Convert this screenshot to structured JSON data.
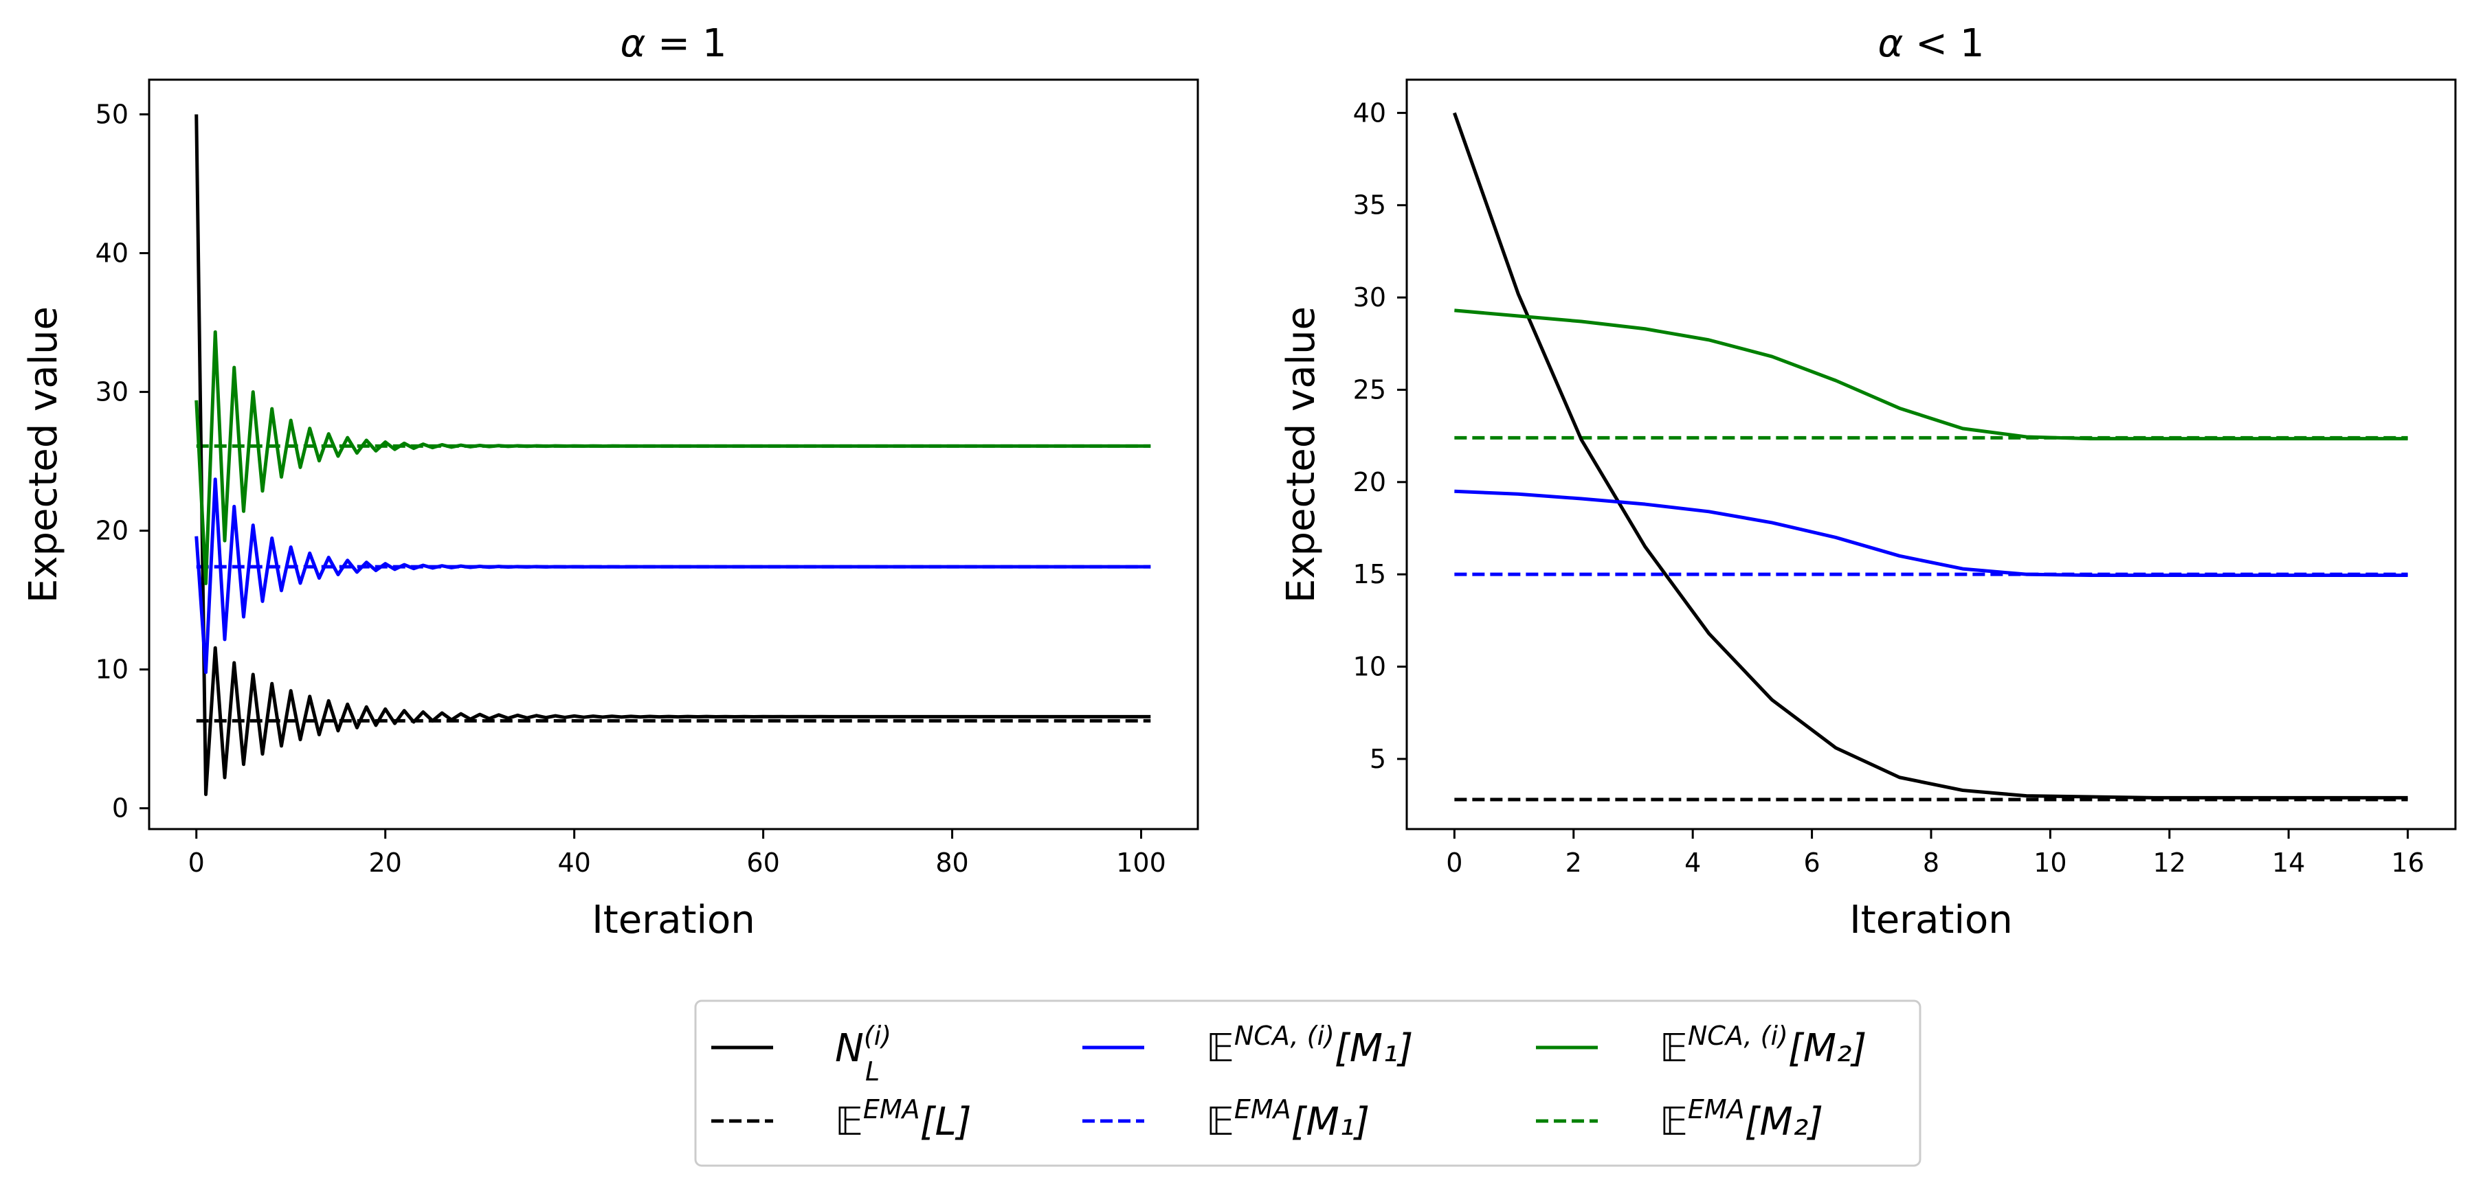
{
  "figure": {
    "panel_left_title_prefix": "α",
    "panel_left_title_relation": " = 1",
    "panel_right_title_prefix": "α",
    "panel_right_title_relation": " < 1"
  },
  "chart_data": [
    {
      "type": "line",
      "title": "α = 1",
      "xlabel": "Iteration",
      "ylabel": "Expected value",
      "xlim": [
        -5,
        106
      ],
      "ylim": [
        -1.5,
        52.5
      ],
      "xticks": [
        0,
        20,
        40,
        60,
        80,
        100
      ],
      "yticks": [
        0,
        10,
        20,
        30,
        40,
        50
      ],
      "grid": false,
      "series": [
        {
          "name": "N_L^(i)",
          "style": "solid",
          "color": "#000000",
          "generator": {
            "start": 50.0,
            "target": 6.6,
            "first_dip": 1.0,
            "decay": 0.885,
            "n": 102
          }
        },
        {
          "name": "E^EMA[L]",
          "style": "dashed",
          "color": "#000000",
          "x": [
            0,
            101
          ],
          "y": [
            6.3,
            6.3
          ]
        },
        {
          "name": "E^NCA,(i)[M1]",
          "style": "solid",
          "color": "#0000ff",
          "generator": {
            "start": 19.6,
            "target": 17.4,
            "first_dip": 9.8,
            "decay": 0.83,
            "n": 102
          }
        },
        {
          "name": "E^EMA[M1]",
          "style": "dashed",
          "color": "#0000ff",
          "x": [
            0,
            101
          ],
          "y": [
            17.4,
            17.4
          ]
        },
        {
          "name": "E^NCA,(i)[M2]",
          "style": "solid",
          "color": "#008000",
          "generator": {
            "start": 29.4,
            "target": 26.1,
            "first_dip": 16.2,
            "decay": 0.83,
            "n": 102
          }
        },
        {
          "name": "E^EMA[M2]",
          "style": "dashed",
          "color": "#008000",
          "x": [
            0,
            101
          ],
          "y": [
            26.1,
            26.1
          ]
        }
      ]
    },
    {
      "type": "line",
      "title": "α < 1",
      "xlabel": "Iteration",
      "ylabel": "Expected value",
      "xlim": [
        -0.8,
        16.8
      ],
      "ylim": [
        1.2,
        41.8
      ],
      "xticks": [
        0,
        2,
        4,
        6,
        8,
        10,
        12,
        14,
        16
      ],
      "yticks": [
        5,
        10,
        15,
        20,
        25,
        30,
        35,
        40
      ],
      "grid": false,
      "series": [
        {
          "name": "N_L^(i)",
          "style": "solid",
          "color": "#000000",
          "x": [
            0,
            1.07,
            2.13,
            3.2,
            4.27,
            5.33,
            6.4,
            7.47,
            8.53,
            9.6,
            10.67,
            11.73,
            12.8,
            13.87,
            14.93,
            16
          ],
          "y": [
            40,
            30.2,
            22.3,
            16.5,
            11.8,
            8.2,
            5.6,
            4.0,
            3.3,
            3.0,
            2.95,
            2.9,
            2.9,
            2.9,
            2.9,
            2.9
          ]
        },
        {
          "name": "E^EMA[L]",
          "style": "dashed",
          "color": "#000000",
          "x": [
            0,
            16
          ],
          "y": [
            2.8,
            2.8
          ]
        },
        {
          "name": "E^NCA,(i)[M1]",
          "style": "solid",
          "color": "#0000ff",
          "x": [
            0,
            1.07,
            2.13,
            3.2,
            4.27,
            5.33,
            6.4,
            7.47,
            8.53,
            9.6,
            10.67,
            11.73,
            12.8,
            13.87,
            14.93,
            16
          ],
          "y": [
            19.5,
            19.35,
            19.1,
            18.8,
            18.4,
            17.8,
            17.0,
            16.0,
            15.3,
            15.0,
            14.95,
            14.95,
            14.95,
            14.95,
            14.95,
            14.95
          ]
        },
        {
          "name": "E^EMA[M1]",
          "style": "dashed",
          "color": "#0000ff",
          "x": [
            0,
            16
          ],
          "y": [
            15.0,
            15.0
          ]
        },
        {
          "name": "E^NCA,(i)[M2]",
          "style": "solid",
          "color": "#008000",
          "x": [
            0,
            1.07,
            2.13,
            3.2,
            4.27,
            5.33,
            6.4,
            7.47,
            8.53,
            9.6,
            10.67,
            11.73,
            12.8,
            13.87,
            14.93,
            16
          ],
          "y": [
            29.3,
            29.0,
            28.7,
            28.3,
            27.7,
            26.8,
            25.5,
            24.0,
            22.9,
            22.45,
            22.35,
            22.35,
            22.35,
            22.35,
            22.35,
            22.35
          ]
        },
        {
          "name": "E^EMA[M2]",
          "style": "dashed",
          "color": "#008000",
          "x": [
            0,
            16
          ],
          "y": [
            22.4,
            22.4
          ]
        }
      ]
    }
  ],
  "legend": {
    "placement": "bottom-center",
    "entries": [
      {
        "name": "N_L^(i)",
        "text": "N",
        "sub": "L",
        "sup": "(i)",
        "tail": "",
        "style": "solid",
        "color": "#000000"
      },
      {
        "name": "E^EMA[L]",
        "text": "𝔼",
        "sub": "",
        "sup": "EMA",
        "tail": "[L]",
        "style": "dashed",
        "color": "#000000"
      },
      {
        "name": "E^NCA,(i)[M1]",
        "text": "𝔼",
        "sub": "",
        "sup": "NCA, (i)",
        "tail": "[M₁]",
        "style": "solid",
        "color": "#0000ff"
      },
      {
        "name": "E^EMA[M1]",
        "text": "𝔼",
        "sub": "",
        "sup": "EMA",
        "tail": "[M₁]",
        "style": "dashed",
        "color": "#0000ff"
      },
      {
        "name": "E^NCA,(i)[M2]",
        "text": "𝔼",
        "sub": "",
        "sup": "NCA, (i)",
        "tail": "[M₂]",
        "style": "solid",
        "color": "#008000"
      },
      {
        "name": "E^EMA[M2]",
        "text": "𝔼",
        "sub": "",
        "sup": "EMA",
        "tail": "[M₂]",
        "style": "dashed",
        "color": "#008000"
      }
    ]
  }
}
